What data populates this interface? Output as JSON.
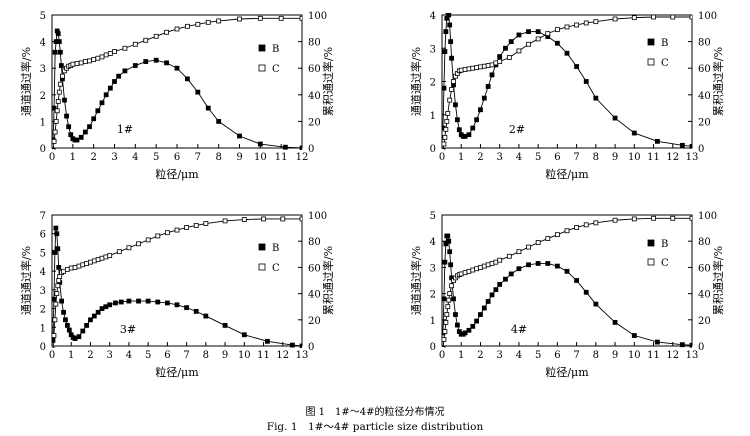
{
  "caption_cn": "图 1　1#～4#的粒径分布情况",
  "caption_en": "Fig. 1　1#～4# particle size distribution",
  "chart_data": [
    {
      "type": "line",
      "label": "1#",
      "xlabel": "粒径/μm",
      "ylabel_left": "通道通过率/%",
      "ylabel_right": "累积通过率/%",
      "xlim": [
        0,
        12
      ],
      "ylim_left": [
        0,
        5
      ],
      "ylim_right": [
        0,
        100
      ],
      "x_ticks": [
        0,
        1,
        2,
        3,
        4,
        5,
        6,
        7,
        8,
        9,
        10,
        11,
        12
      ],
      "y_ticks_left": [
        0,
        1,
        2,
        3,
        4,
        5
      ],
      "y_ticks_right": [
        0,
        20,
        40,
        60,
        80,
        100
      ],
      "legend": [
        "B",
        "C"
      ],
      "legend_position": "right",
      "series": [
        {
          "name": "B",
          "axis": "left",
          "marker": "filled-square",
          "x": [
            0.05,
            0.1,
            0.15,
            0.2,
            0.25,
            0.3,
            0.35,
            0.4,
            0.45,
            0.5,
            0.6,
            0.7,
            0.8,
            0.9,
            1.0,
            1.1,
            1.2,
            1.4,
            1.6,
            1.8,
            2.0,
            2.2,
            2.4,
            2.6,
            2.8,
            3.0,
            3.2,
            3.5,
            4.0,
            4.5,
            5.0,
            5.5,
            6.0,
            6.5,
            7.0,
            7.5,
            8.0,
            9.0,
            10.0,
            11.2,
            12.0
          ],
          "y": [
            0.3,
            1.5,
            3.6,
            4.0,
            4.4,
            4.3,
            4.0,
            3.6,
            3.1,
            2.6,
            1.8,
            1.2,
            0.8,
            0.5,
            0.35,
            0.3,
            0.3,
            0.4,
            0.6,
            0.8,
            1.1,
            1.4,
            1.7,
            2.0,
            2.25,
            2.5,
            2.7,
            2.9,
            3.1,
            3.25,
            3.3,
            3.2,
            3.0,
            2.6,
            2.1,
            1.5,
            1.0,
            0.45,
            0.15,
            0.03,
            0.0
          ]
        },
        {
          "name": "C",
          "axis": "right",
          "marker": "open-square",
          "x": [
            0.05,
            0.1,
            0.15,
            0.2,
            0.25,
            0.3,
            0.35,
            0.4,
            0.5,
            0.6,
            0.7,
            0.8,
            0.9,
            1.0,
            1.2,
            1.4,
            1.6,
            1.8,
            2.0,
            2.2,
            2.4,
            2.6,
            2.8,
            3.0,
            3.5,
            4.0,
            4.5,
            5.0,
            5.5,
            6.0,
            6.5,
            7.0,
            7.5,
            8.0,
            9.0,
            10.0,
            11.0,
            12.0
          ],
          "y": [
            -2,
            5,
            12,
            20,
            28,
            35,
            42,
            48,
            54,
            58,
            60,
            61.5,
            62,
            63,
            63.5,
            64,
            65,
            65.5,
            66.5,
            67.5,
            68.5,
            70,
            71,
            72.5,
            75,
            78,
            81,
            84,
            87,
            89.5,
            91.5,
            93,
            94.5,
            95.5,
            97,
            97.5,
            97.5,
            97.5
          ]
        }
      ]
    },
    {
      "type": "line",
      "label": "2#",
      "xlabel": "粒径/μm",
      "ylabel_left": "通道通过率/%",
      "ylabel_right": "累积通过率/%",
      "xlim": [
        0,
        13
      ],
      "ylim_left": [
        0,
        4
      ],
      "ylim_right": [
        0,
        100
      ],
      "x_ticks": [
        0,
        1,
        2,
        3,
        4,
        5,
        6,
        7,
        8,
        9,
        10,
        11,
        12,
        13
      ],
      "y_ticks_left": [
        0,
        1,
        2,
        3,
        4
      ],
      "y_ticks_right": [
        0,
        20,
        40,
        60,
        80,
        100
      ],
      "legend": [
        "B",
        "C"
      ],
      "legend_position": "right",
      "series": [
        {
          "name": "B",
          "axis": "left",
          "marker": "filled-square",
          "x": [
            0.05,
            0.1,
            0.15,
            0.2,
            0.25,
            0.3,
            0.35,
            0.4,
            0.45,
            0.5,
            0.6,
            0.7,
            0.8,
            0.9,
            1.0,
            1.1,
            1.2,
            1.4,
            1.6,
            1.8,
            2.0,
            2.2,
            2.4,
            2.6,
            2.8,
            3.0,
            3.3,
            3.6,
            4.0,
            4.5,
            5.0,
            5.5,
            6.0,
            6.5,
            7.0,
            7.5,
            8.0,
            9.0,
            10.0,
            11.2,
            12.5,
            13.0
          ],
          "y": [
            0.6,
            1.8,
            2.9,
            3.5,
            3.9,
            4.1,
            4.0,
            3.7,
            3.2,
            2.7,
            1.9,
            1.3,
            0.85,
            0.55,
            0.4,
            0.35,
            0.35,
            0.4,
            0.6,
            0.85,
            1.15,
            1.5,
            1.85,
            2.2,
            2.5,
            2.75,
            3.0,
            3.2,
            3.4,
            3.5,
            3.5,
            3.35,
            3.15,
            2.85,
            2.45,
            2.0,
            1.5,
            0.9,
            0.45,
            0.2,
            0.08,
            0.05
          ]
        },
        {
          "name": "C",
          "axis": "right",
          "marker": "open-square",
          "x": [
            0.05,
            0.1,
            0.15,
            0.2,
            0.25,
            0.3,
            0.4,
            0.5,
            0.6,
            0.7,
            0.8,
            0.9,
            1.0,
            1.2,
            1.4,
            1.6,
            1.8,
            2.0,
            2.2,
            2.4,
            2.6,
            2.8,
            3.0,
            3.5,
            4.0,
            4.5,
            5.0,
            5.5,
            6.0,
            6.5,
            7.0,
            7.5,
            8.0,
            9.0,
            10.0,
            11.0,
            12.0,
            13.0
          ],
          "y": [
            -2,
            3,
            8,
            14,
            20,
            26,
            36,
            44,
            50,
            54,
            56,
            58,
            58.5,
            59,
            59.5,
            60,
            60.5,
            61,
            61.5,
            62,
            62.5,
            64,
            65,
            68,
            73,
            78,
            82,
            86,
            89,
            91,
            92.5,
            94,
            95,
            97,
            98,
            98.5,
            98.5,
            98.5
          ]
        }
      ]
    },
    {
      "type": "line",
      "label": "3#",
      "xlabel": "粒径/μm",
      "ylabel_left": "通道通过率/%",
      "ylabel_right": "累积通过率/%",
      "xlim": [
        0,
        13
      ],
      "ylim_left": [
        0,
        7
      ],
      "ylim_right": [
        0,
        100
      ],
      "x_ticks": [
        0,
        1,
        2,
        3,
        4,
        5,
        6,
        7,
        8,
        9,
        10,
        11,
        12,
        13
      ],
      "y_ticks_left": [
        0,
        1,
        2,
        3,
        4,
        5,
        6,
        7
      ],
      "y_ticks_right": [
        0,
        20,
        40,
        60,
        80,
        100
      ],
      "legend": [
        "B",
        "C"
      ],
      "legend_position": "right",
      "series": [
        {
          "name": "B",
          "axis": "left",
          "marker": "filled-square",
          "x": [
            0.05,
            0.1,
            0.15,
            0.2,
            0.25,
            0.3,
            0.35,
            0.4,
            0.5,
            0.6,
            0.7,
            0.8,
            0.9,
            1.0,
            1.1,
            1.2,
            1.4,
            1.6,
            1.8,
            2.0,
            2.2,
            2.4,
            2.6,
            2.8,
            3.0,
            3.3,
            3.6,
            4.0,
            4.5,
            5.0,
            5.5,
            6.0,
            6.5,
            7.0,
            7.5,
            8.0,
            9.0,
            10.0,
            11.2,
            12.5,
            13.0
          ],
          "y": [
            0.3,
            2.5,
            5.0,
            6.3,
            6.0,
            5.2,
            4.2,
            3.4,
            2.4,
            1.8,
            1.4,
            1.1,
            0.85,
            0.6,
            0.45,
            0.4,
            0.5,
            0.8,
            1.1,
            1.4,
            1.6,
            1.8,
            2.0,
            2.1,
            2.2,
            2.3,
            2.35,
            2.4,
            2.4,
            2.4,
            2.35,
            2.3,
            2.2,
            2.05,
            1.85,
            1.6,
            1.1,
            0.6,
            0.25,
            0.05,
            0.0
          ]
        },
        {
          "name": "C",
          "axis": "right",
          "marker": "open-square",
          "x": [
            0.05,
            0.1,
            0.15,
            0.2,
            0.25,
            0.3,
            0.35,
            0.4,
            0.5,
            0.6,
            0.8,
            1.0,
            1.2,
            1.4,
            1.6,
            1.8,
            2.0,
            2.2,
            2.4,
            2.6,
            2.8,
            3.0,
            3.5,
            4.0,
            4.5,
            5.0,
            5.5,
            6.0,
            6.5,
            7.0,
            7.5,
            8.0,
            9.0,
            10.0,
            11.0,
            12.0,
            13.0
          ],
          "y": [
            -3,
            8,
            20,
            32,
            40,
            46,
            50,
            53,
            56,
            57,
            58.5,
            59.5,
            60,
            61,
            62,
            63,
            64,
            65,
            66,
            67,
            68,
            69,
            72,
            75,
            78,
            81,
            84,
            86.5,
            88.5,
            90.5,
            92,
            93.5,
            95.5,
            96.5,
            97,
            97,
            97
          ]
        }
      ]
    },
    {
      "type": "line",
      "label": "4#",
      "xlabel": "粒径/μm",
      "ylabel_left": "通道通过率/%",
      "ylabel_right": "累积通过率/%",
      "xlim": [
        0,
        13
      ],
      "ylim_left": [
        0,
        5
      ],
      "ylim_right": [
        0,
        100
      ],
      "x_ticks": [
        0,
        1,
        2,
        3,
        4,
        5,
        6,
        7,
        8,
        9,
        10,
        11,
        12,
        13
      ],
      "y_ticks_left": [
        0,
        1,
        2,
        3,
        4,
        5
      ],
      "y_ticks_right": [
        0,
        20,
        40,
        60,
        80,
        100
      ],
      "legend": [
        "B",
        "C"
      ],
      "legend_position": "right",
      "series": [
        {
          "name": "B",
          "axis": "left",
          "marker": "filled-square",
          "x": [
            0.05,
            0.1,
            0.15,
            0.2,
            0.25,
            0.3,
            0.35,
            0.4,
            0.45,
            0.5,
            0.6,
            0.7,
            0.8,
            0.9,
            1.0,
            1.1,
            1.2,
            1.4,
            1.6,
            1.8,
            2.0,
            2.2,
            2.4,
            2.6,
            2.8,
            3.0,
            3.3,
            3.6,
            4.0,
            4.5,
            5.0,
            5.5,
            6.0,
            6.5,
            7.0,
            7.5,
            8.0,
            9.0,
            10.0,
            11.2,
            12.5,
            13.0
          ],
          "y": [
            0.5,
            1.8,
            3.2,
            3.9,
            4.2,
            4.2,
            4.0,
            3.6,
            3.1,
            2.6,
            1.8,
            1.2,
            0.8,
            0.55,
            0.45,
            0.45,
            0.5,
            0.6,
            0.75,
            0.95,
            1.2,
            1.45,
            1.7,
            1.95,
            2.15,
            2.35,
            2.55,
            2.75,
            2.95,
            3.1,
            3.15,
            3.15,
            3.05,
            2.85,
            2.5,
            2.05,
            1.6,
            0.9,
            0.4,
            0.15,
            0.05,
            0.03
          ]
        },
        {
          "name": "C",
          "axis": "right",
          "marker": "open-square",
          "x": [
            0.05,
            0.1,
            0.15,
            0.2,
            0.25,
            0.3,
            0.35,
            0.4,
            0.5,
            0.6,
            0.7,
            0.8,
            0.9,
            1.0,
            1.2,
            1.4,
            1.6,
            1.8,
            2.0,
            2.2,
            2.4,
            2.6,
            2.8,
            3.0,
            3.5,
            4.0,
            4.5,
            5.0,
            5.5,
            6.0,
            6.5,
            7.0,
            7.5,
            8.0,
            9.0,
            10.0,
            11.0,
            12.0,
            13.0
          ],
          "y": [
            -2,
            5,
            11,
            18,
            24,
            30,
            35,
            40,
            46,
            50,
            52,
            53.5,
            54.5,
            55,
            56,
            57,
            58,
            59,
            60,
            61,
            62,
            63,
            64,
            65.5,
            68.5,
            72,
            75.5,
            79,
            82,
            85,
            88,
            90.5,
            92.5,
            94,
            96,
            97,
            97.5,
            97.5,
            97.5
          ]
        }
      ]
    }
  ]
}
